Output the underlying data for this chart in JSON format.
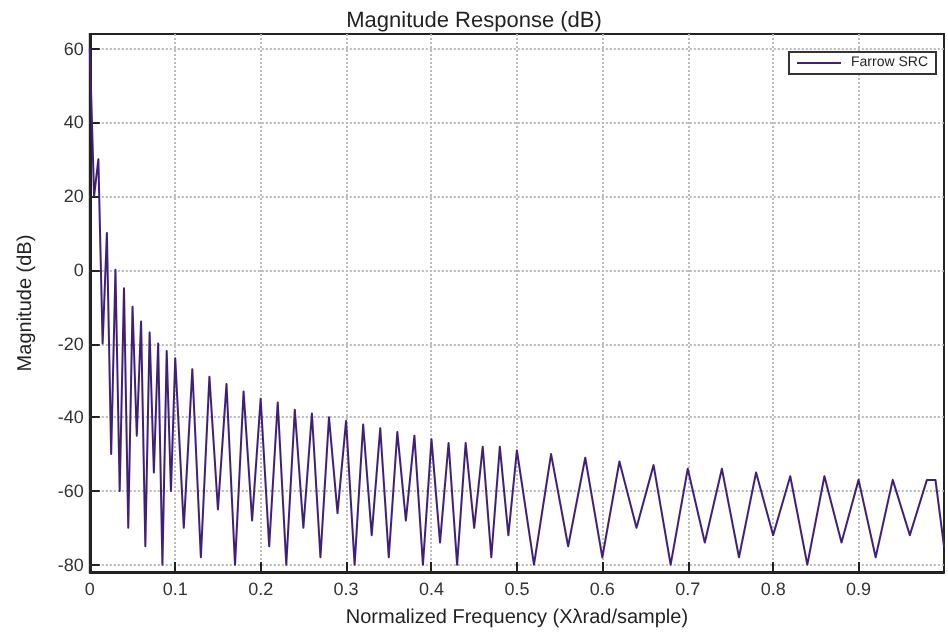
{
  "chart_data": {
    "type": "line",
    "title": "Magnitude Response (dB)",
    "xlabel": "Normalized Frequency (Xλrad/sample)",
    "ylabel": "Magnitude (dB)",
    "xlim": [
      0,
      1
    ],
    "xticks": [
      0,
      0.1,
      0.2,
      0.3,
      0.4,
      0.5,
      0.6,
      0.7,
      0.8,
      0.9
    ],
    "ylim": [
      -82,
      64
    ],
    "yticks": [
      -80,
      -60,
      -40,
      -20,
      0,
      20,
      40,
      60
    ],
    "grid": true,
    "legend": "top right",
    "line_style": "solid",
    "marker": "none",
    "series": [
      {
        "name": "Farrow SRC",
        "color": "#3f1f78",
        "x": [
          0,
          0.005,
          0.01,
          0.015,
          0.02,
          0.025,
          0.03,
          0.035,
          0.04,
          0.045,
          0.05,
          0.055,
          0.06,
          0.065,
          0.07,
          0.075,
          0.08,
          0.085,
          0.09,
          0.095,
          0.1,
          0.11,
          0.12,
          0.13,
          0.14,
          0.15,
          0.16,
          0.17,
          0.18,
          0.19,
          0.2,
          0.21,
          0.22,
          0.23,
          0.24,
          0.25,
          0.26,
          0.27,
          0.28,
          0.29,
          0.3,
          0.31,
          0.32,
          0.33,
          0.34,
          0.35,
          0.36,
          0.37,
          0.38,
          0.39,
          0.4,
          0.41,
          0.42,
          0.43,
          0.44,
          0.45,
          0.46,
          0.47,
          0.48,
          0.49,
          0.5,
          0.52,
          0.54,
          0.56,
          0.58,
          0.6,
          0.62,
          0.64,
          0.66,
          0.68,
          0.7,
          0.72,
          0.74,
          0.76,
          0.78,
          0.8,
          0.82,
          0.84,
          0.86,
          0.88,
          0.9,
          0.92,
          0.94,
          0.96,
          0.98,
          0.99,
          1.0
        ],
        "values": [
          60,
          20,
          30,
          -20,
          10,
          -50,
          0,
          -60,
          -5,
          -70,
          -10,
          -45,
          -14,
          -75,
          -17,
          -55,
          -20,
          -80,
          -22,
          -60,
          -24,
          -70,
          -27,
          -78,
          -29,
          -65,
          -31,
          -80,
          -33,
          -68,
          -35,
          -75,
          -36,
          -80,
          -38,
          -70,
          -39,
          -78,
          -40,
          -66,
          -41,
          -80,
          -42,
          -72,
          -43,
          -78,
          -44,
          -68,
          -45,
          -80,
          -46,
          -74,
          -47,
          -80,
          -47,
          -70,
          -48,
          -78,
          -48,
          -72,
          -49,
          -80,
          -50,
          -75,
          -51,
          -78,
          -52,
          -70,
          -53,
          -80,
          -54,
          -74,
          -54,
          -78,
          -55,
          -72,
          -56,
          -80,
          -56,
          -74,
          -57,
          -78,
          -57,
          -72,
          -57,
          -57,
          -75
        ]
      }
    ]
  }
}
